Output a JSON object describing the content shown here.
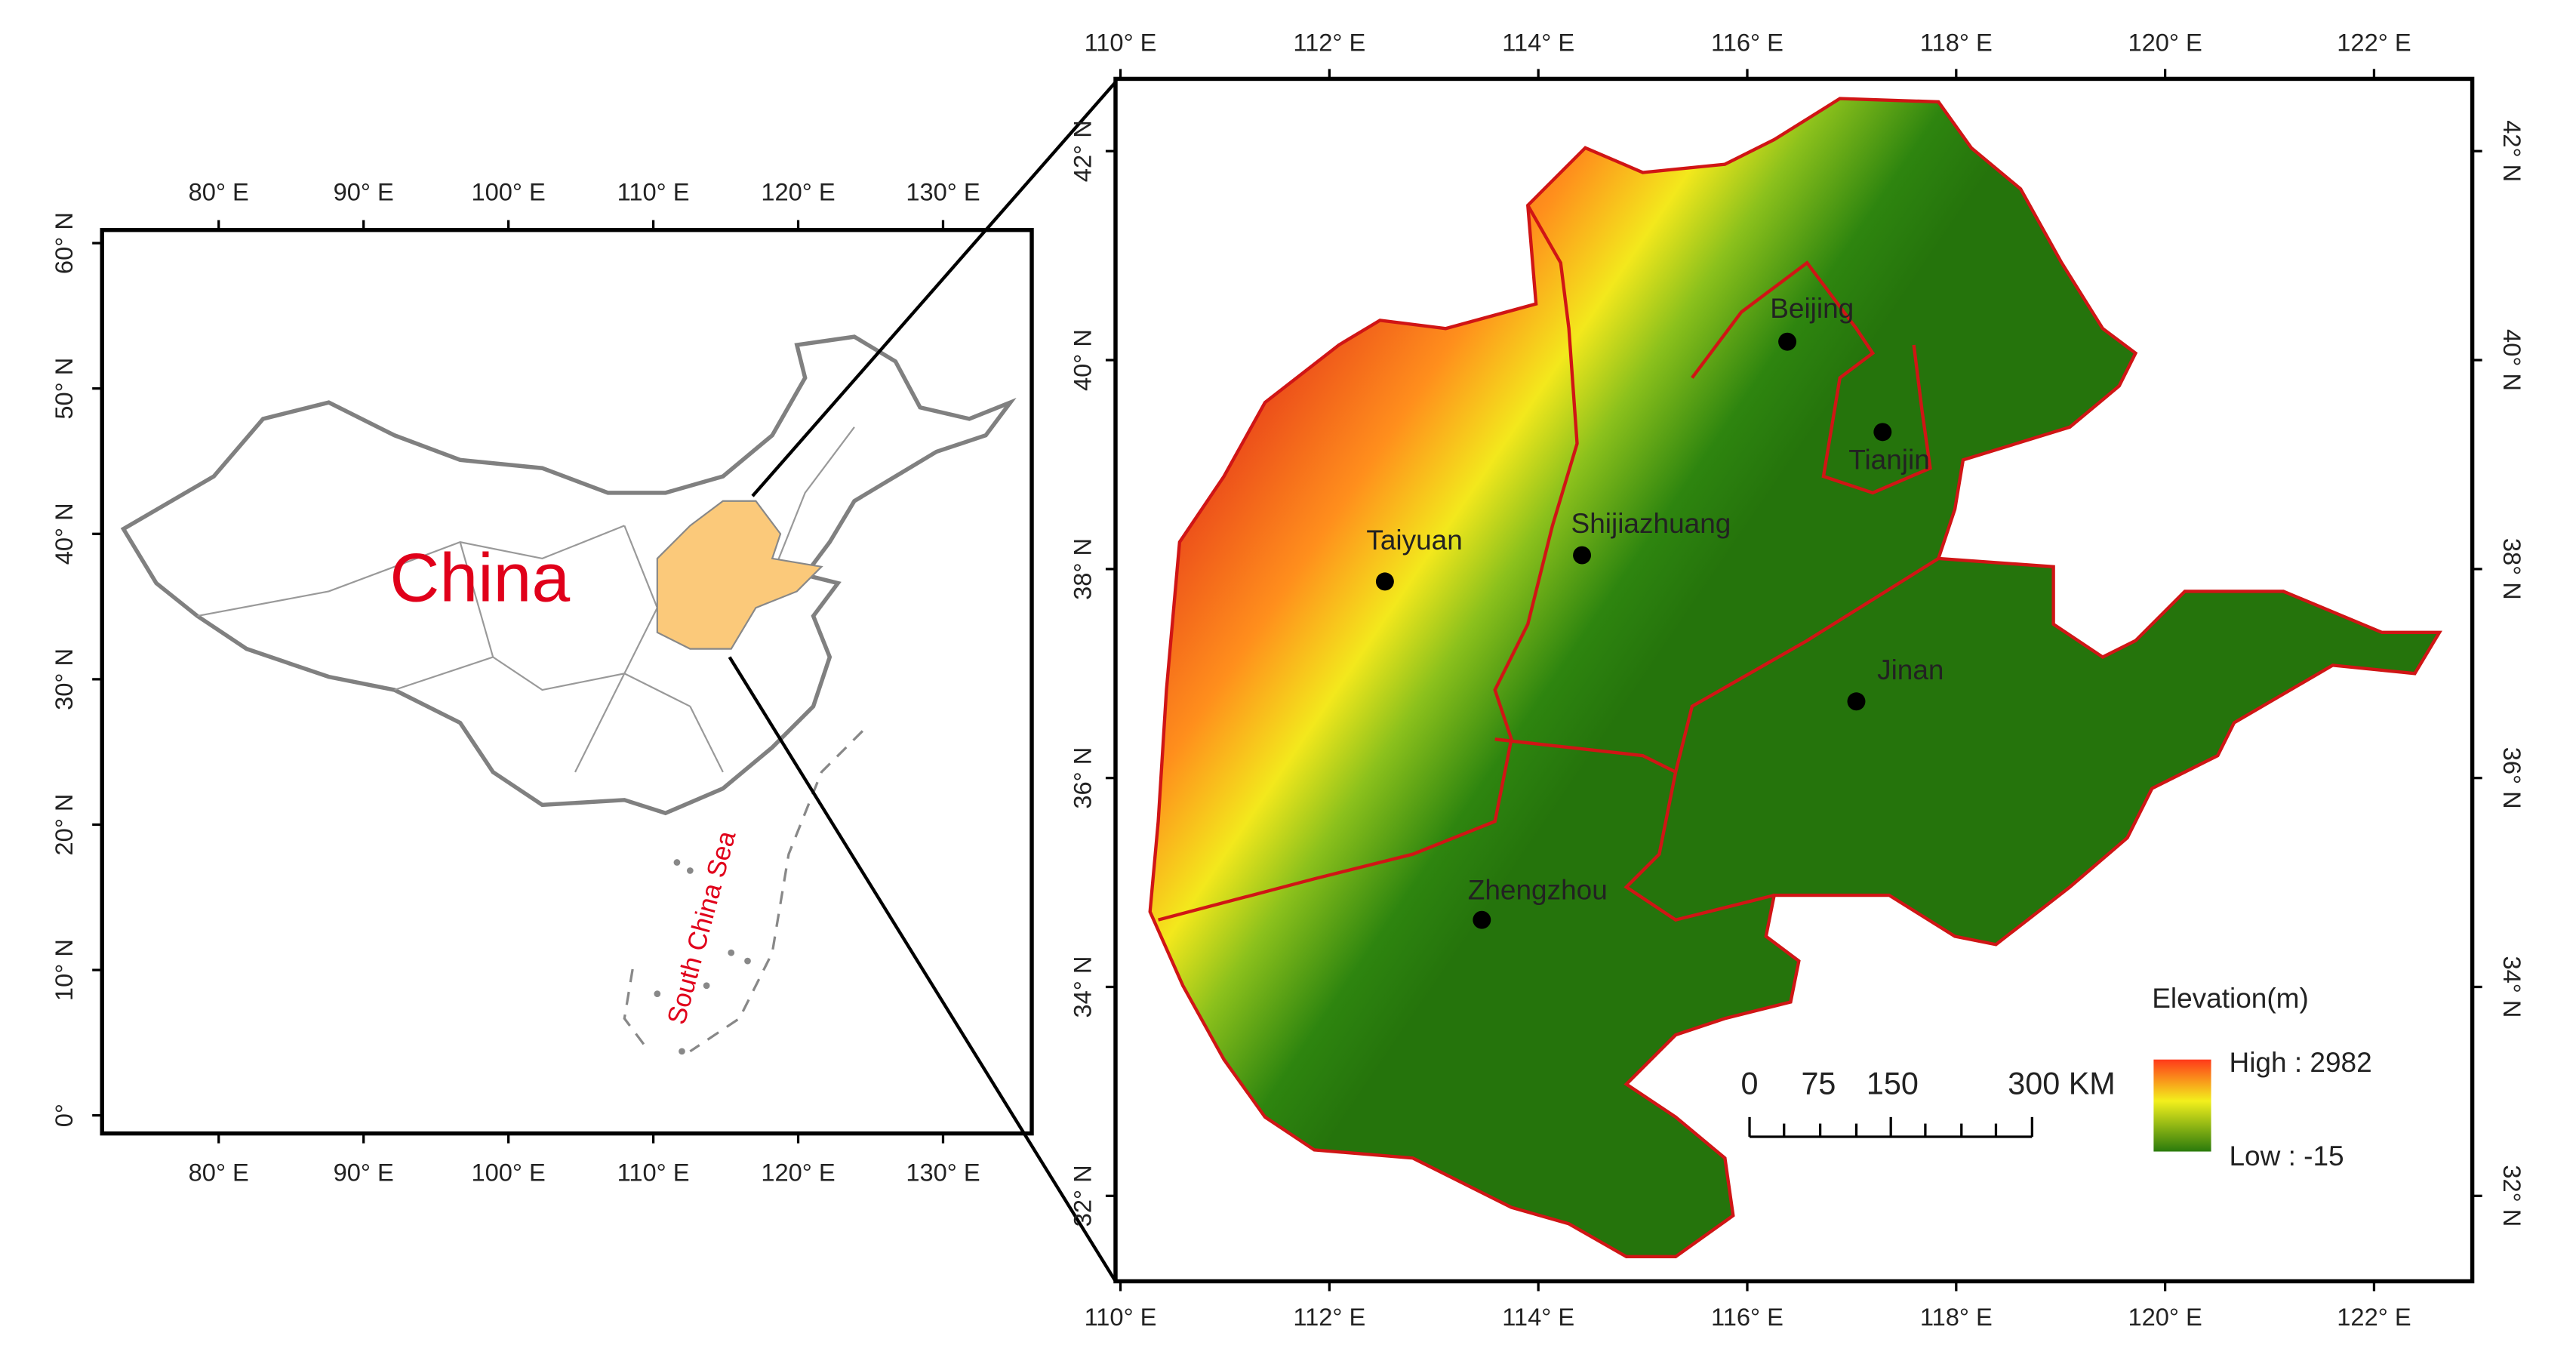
{
  "left_map": {
    "label": "China",
    "sea_label": "South China Sea",
    "lon_ticks": [
      "80° E",
      "90° E",
      "100° E",
      "110° E",
      "120° E",
      "130° E"
    ],
    "lat_ticks": [
      "0°",
      "10° N",
      "20° N",
      "30° N",
      "40° N",
      "50° N",
      "60° N"
    ]
  },
  "right_map": {
    "lon_ticks": [
      "110° E",
      "112° E",
      "114° E",
      "116° E",
      "118° E",
      "120° E",
      "122° E"
    ],
    "lat_ticks": [
      "32° N",
      "34° N",
      "36° N",
      "38° N",
      "40° N",
      "42° N"
    ],
    "cities": [
      "Beijing",
      "Tianjin",
      "Taiyuan",
      "Shijiazhuang",
      "Jinan",
      "Zhengzhou"
    ],
    "legend": {
      "title": "Elevation(m)",
      "high": "High : 2982",
      "low": "Low : -15"
    },
    "scale_bar": {
      "labels": [
        "0",
        "75",
        "150",
        "300 KM"
      ]
    }
  }
}
